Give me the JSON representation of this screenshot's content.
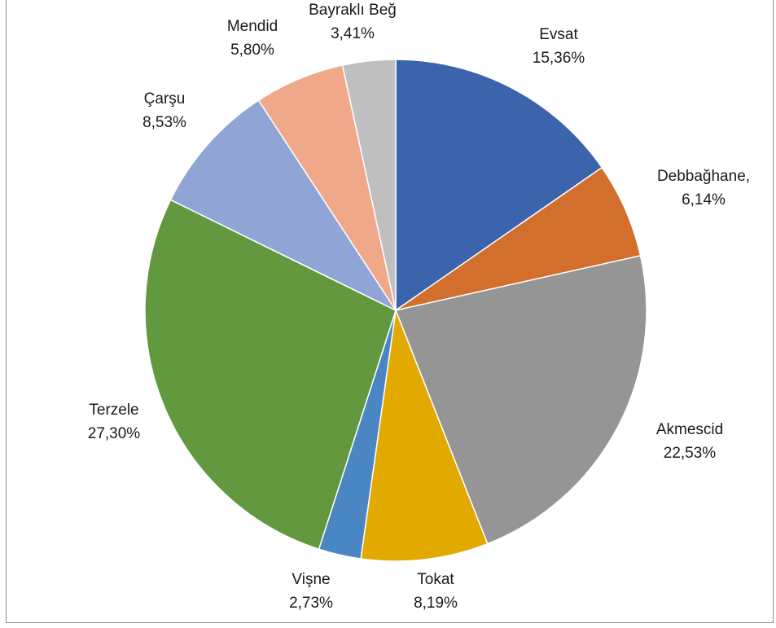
{
  "chart_data": {
    "type": "pie",
    "title": "",
    "start_angle_deg": 0,
    "direction": "clockwise",
    "legend": "none",
    "slices": [
      {
        "name": "Evsat",
        "value": 15.36,
        "label": "15,36%",
        "color": "#3c64ad"
      },
      {
        "name": "Debbağhane,",
        "value": 6.14,
        "label": "6,14%",
        "color": "#d26f2c"
      },
      {
        "name": "Akmescid",
        "value": 22.53,
        "label": "22,53%",
        "color": "#959595"
      },
      {
        "name": "Tokat",
        "value": 8.19,
        "label": "8,19%",
        "color": "#e2a900"
      },
      {
        "name": "Vişne",
        "value": 2.73,
        "label": "2,73%",
        "color": "#4b86c4"
      },
      {
        "name": "Terzele",
        "value": 27.3,
        "label": "27,30%",
        "color": "#62993f"
      },
      {
        "name": "Çarşu",
        "value": 8.53,
        "label": "8,53%",
        "color": "#90a4d5"
      },
      {
        "name": "Mendid",
        "value": 5.8,
        "label": "5,80%",
        "color": "#f0a88a"
      },
      {
        "name": "Bayraklı Beğ",
        "value": 3.41,
        "label": "3,41%",
        "color": "#bfbfbf"
      }
    ]
  }
}
